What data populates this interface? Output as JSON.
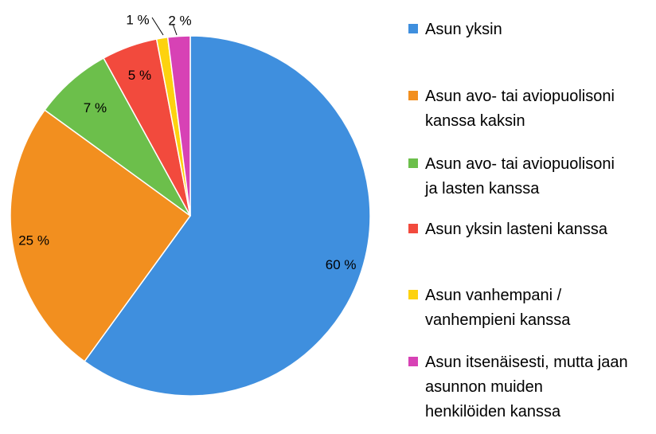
{
  "chart_data": {
    "type": "pie",
    "title": "",
    "start_angle_deg": 0,
    "direction": "clockwise",
    "slices": [
      {
        "label": "Asun yksin",
        "value": 60,
        "value_label": "60 %",
        "color": "#3f8fde"
      },
      {
        "label": "Asun avo- tai aviopuolisoni\nkanssa kaksin",
        "value": 25,
        "value_label": "25 %",
        "color": "#f28f1f"
      },
      {
        "label": "Asun avo- tai aviopuolisoni\nja lasten kanssa",
        "value": 7,
        "value_label": "7 %",
        "color": "#6cbf4b"
      },
      {
        "label": "Asun yksin lasteni kanssa",
        "value": 5,
        "value_label": "5 %",
        "color": "#f24a3d"
      },
      {
        "label": "Asun vanhempani /\nvanhempieni kanssa",
        "value": 1,
        "value_label": "1 %",
        "color": "#fdd20f"
      },
      {
        "label": "Asun itsenäisesti, mutta jaan\nasunnon muiden\nhenkilöiden kanssa",
        "value": 2,
        "value_label": "2 %",
        "color": "#d742b5"
      }
    ],
    "legend_position": "right"
  }
}
